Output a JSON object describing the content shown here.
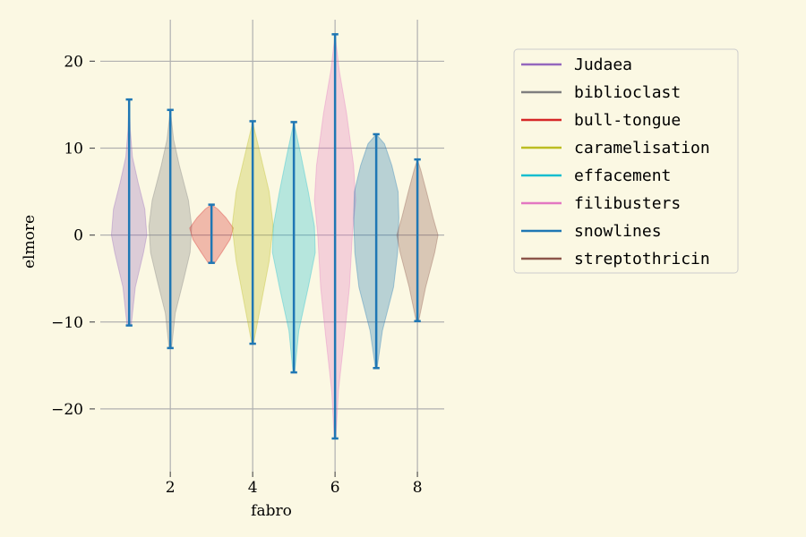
{
  "chart_data": {
    "type": "violin",
    "xlabel": "fabro",
    "ylabel": "elmore",
    "xlim": [
      0.3,
      8.65
    ],
    "ylim": [
      -26.5,
      25.5
    ],
    "xticks": [
      2,
      4,
      6,
      8
    ],
    "yticks": [
      -20,
      -10,
      0,
      10,
      20
    ],
    "grid": true,
    "legend_position": "right",
    "series": [
      {
        "name": "Judaea",
        "position": 1,
        "min": -10.4,
        "max": 15.6,
        "color": "#9467bd",
        "shape": [
          [
            -10.4,
            0.05
          ],
          [
            -6,
            0.15
          ],
          [
            -2,
            0.35
          ],
          [
            0,
            0.43
          ],
          [
            3,
            0.38
          ],
          [
            6,
            0.22
          ],
          [
            9,
            0.08
          ],
          [
            12,
            0.03
          ],
          [
            15.6,
            0
          ]
        ]
      },
      {
        "name": "biblioclast",
        "position": 2,
        "min": -13.0,
        "max": 14.4,
        "color": "#7f7f7f",
        "shape": [
          [
            -13,
            0.03
          ],
          [
            -9,
            0.12
          ],
          [
            -5,
            0.33
          ],
          [
            -2,
            0.48
          ],
          [
            1,
            0.52
          ],
          [
            4,
            0.44
          ],
          [
            8,
            0.22
          ],
          [
            11,
            0.08
          ],
          [
            14.4,
            0
          ]
        ]
      },
      {
        "name": "bull-tongue",
        "position": 3,
        "min": -3.2,
        "max": 3.5,
        "color": "#d62728",
        "shape": [
          [
            -3.2,
            0.08
          ],
          [
            -2,
            0.25
          ],
          [
            -0.5,
            0.45
          ],
          [
            0.8,
            0.53
          ],
          [
            2,
            0.35
          ],
          [
            3,
            0.15
          ],
          [
            3.5,
            0
          ]
        ]
      },
      {
        "name": "caramelisation",
        "position": 4,
        "min": -12.5,
        "max": 13.1,
        "color": "#bcbd22",
        "shape": [
          [
            -12.5,
            0.02
          ],
          [
            -8,
            0.2
          ],
          [
            -3,
            0.4
          ],
          [
            1,
            0.5
          ],
          [
            5,
            0.4
          ],
          [
            9,
            0.2
          ],
          [
            12,
            0.05
          ],
          [
            13.1,
            0
          ]
        ]
      },
      {
        "name": "effacement",
        "position": 5,
        "min": -15.8,
        "max": 13.0,
        "color": "#17becf",
        "shape": [
          [
            -15.8,
            0.02
          ],
          [
            -11,
            0.12
          ],
          [
            -6,
            0.35
          ],
          [
            -2,
            0.52
          ],
          [
            1,
            0.5
          ],
          [
            5,
            0.35
          ],
          [
            9,
            0.18
          ],
          [
            13,
            0
          ]
        ]
      },
      {
        "name": "filibusters",
        "position": 6,
        "min": -23.4,
        "max": 23.1,
        "color": "#e377c2",
        "shape": [
          [
            -23.4,
            0.02
          ],
          [
            -18,
            0.08
          ],
          [
            -12,
            0.22
          ],
          [
            -6,
            0.35
          ],
          [
            0,
            0.42
          ],
          [
            4,
            0.5
          ],
          [
            8,
            0.45
          ],
          [
            14,
            0.28
          ],
          [
            19,
            0.1
          ],
          [
            23.1,
            0
          ]
        ]
      },
      {
        "name": "snowlines",
        "position": 7,
        "min": -15.3,
        "max": 11.6,
        "color": "#1f77b4",
        "shape": [
          [
            -15.3,
            0.02
          ],
          [
            -11,
            0.15
          ],
          [
            -6,
            0.42
          ],
          [
            -2,
            0.52
          ],
          [
            2,
            0.55
          ],
          [
            5,
            0.53
          ],
          [
            8,
            0.38
          ],
          [
            10.5,
            0.2
          ],
          [
            11.6,
            0
          ]
        ]
      },
      {
        "name": "streptothricin",
        "position": 8,
        "min": -9.9,
        "max": 8.7,
        "color": "#8c564b",
        "shape": [
          [
            -9.9,
            0.03
          ],
          [
            -6,
            0.2
          ],
          [
            -2,
            0.42
          ],
          [
            0,
            0.5
          ],
          [
            2,
            0.38
          ],
          [
            5,
            0.22
          ],
          [
            7.5,
            0.08
          ],
          [
            8.7,
            0
          ]
        ]
      }
    ]
  }
}
